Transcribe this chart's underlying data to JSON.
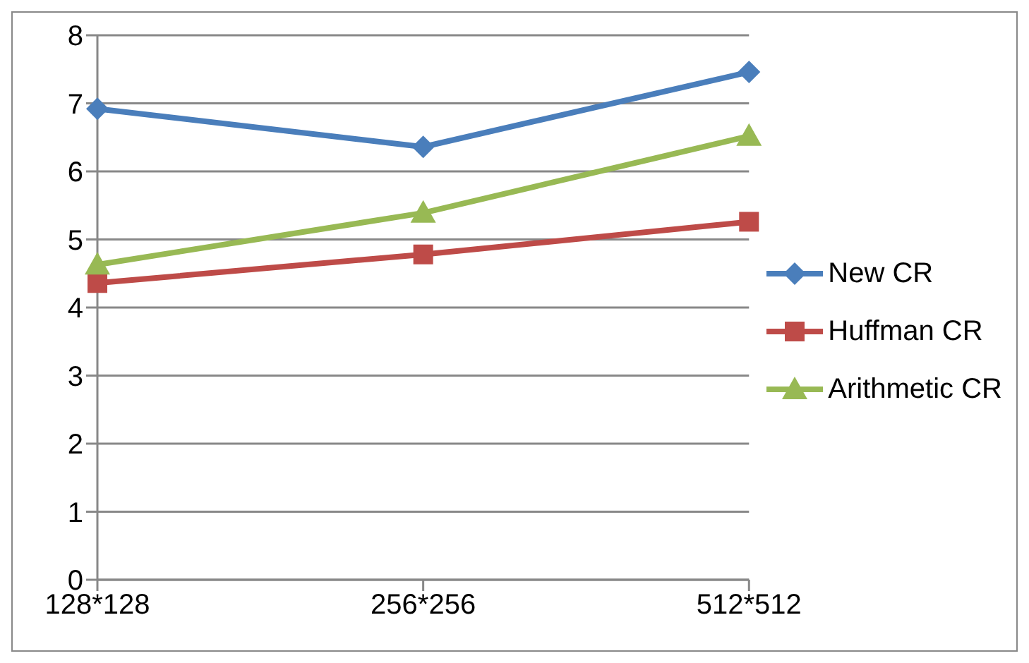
{
  "chart_data": {
    "type": "line",
    "categories": [
      "128*128",
      "256*256",
      "512*512"
    ],
    "ylim": [
      0,
      8
    ],
    "yticks": [
      0,
      1,
      2,
      3,
      4,
      5,
      6,
      7,
      8
    ],
    "grid": "y",
    "legend": "right",
    "series": [
      {
        "name": "New CR",
        "color": "#4a7ebb",
        "marker": "diamond",
        "values": [
          6.92,
          6.36,
          7.46
        ]
      },
      {
        "name": "Huffman CR",
        "color": "#be4b48",
        "marker": "square",
        "values": [
          4.36,
          4.78,
          5.26
        ]
      },
      {
        "name": "Arithmetic CR",
        "color": "#98b954",
        "marker": "triangle",
        "values": [
          4.63,
          5.39,
          6.52
        ]
      }
    ]
  }
}
